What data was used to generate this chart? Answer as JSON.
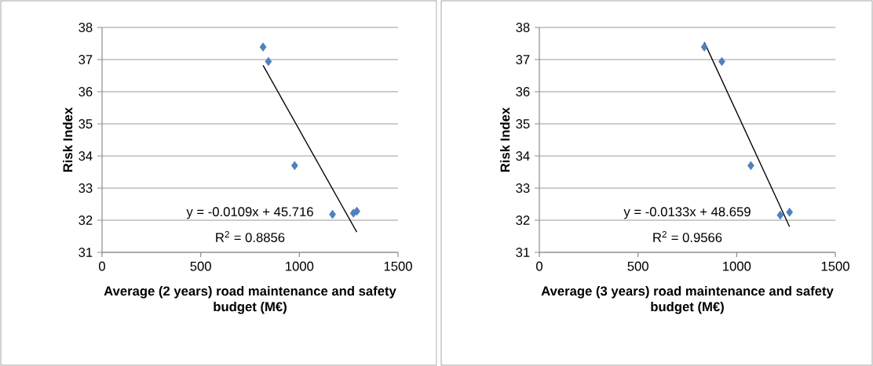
{
  "chart_data": [
    {
      "type": "scatter",
      "xlabel": "Average (2 years) road maintenance and safety budget (M€)",
      "ylabel": "Risk Index",
      "xlim": [
        0,
        1500
      ],
      "xticks": [
        0,
        500,
        1000,
        1500
      ],
      "ylim": [
        31,
        38
      ],
      "yticks": [
        31,
        32,
        33,
        34,
        35,
        36,
        37,
        38
      ],
      "grid": "y",
      "marker": "diamond",
      "annotations": [
        "y = -0.0109x + 45.716",
        "R$^{2}$ = 0.8856"
      ],
      "series": [
        {
          "type": "scatter",
          "color": "#4f81bd",
          "x": [
            816,
            843,
            976,
            1168,
            1274,
            1291
          ],
          "values": [
            37.39,
            36.94,
            33.7,
            32.18,
            32.22,
            32.28
          ]
        },
        {
          "type": "line",
          "color": "#000000",
          "marker": "none",
          "x": [
            816,
            1291
          ],
          "values": [
            36.82,
            31.63
          ]
        }
      ]
    },
    {
      "type": "scatter",
      "xlabel": "Average (3 years) road maintenance and safety budget (M€)",
      "ylabel": "Risk Index",
      "xlim": [
        0,
        1500
      ],
      "xticks": [
        0,
        500,
        1000,
        1500
      ],
      "ylim": [
        31,
        38
      ],
      "yticks": [
        31,
        32,
        33,
        34,
        35,
        36,
        37,
        38
      ],
      "grid": "y",
      "marker": "diamond",
      "annotations": [
        "y = -0.0133x + 48.659",
        "R$^{2}$ = 0.9566"
      ],
      "series": [
        {
          "type": "scatter",
          "color": "#4f81bd",
          "x": [
            836,
            925,
            1072,
            1221,
            1268
          ],
          "values": [
            37.39,
            36.94,
            33.7,
            32.16,
            32.25
          ]
        },
        {
          "type": "line",
          "color": "#000000",
          "marker": "none",
          "x": [
            836,
            1268
          ],
          "values": [
            37.54,
            31.8
          ]
        }
      ]
    }
  ]
}
